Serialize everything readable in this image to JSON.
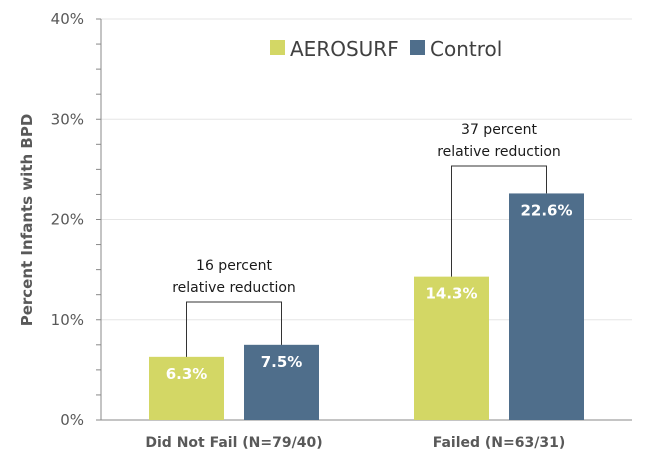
{
  "chart_data": {
    "type": "bar",
    "ylabel": "Percent Infants with BPD",
    "ylim": [
      0,
      40
    ],
    "yticks": [
      "0%",
      "10%",
      "20%",
      "30%",
      "40%"
    ],
    "grid": true,
    "legend_position": "top",
    "categories": [
      "Did Not Fail (N=79/40)",
      "Failed (N=63/31)"
    ],
    "series": [
      {
        "name": "AEROSURF",
        "color": "#d3d765",
        "values": [
          6.3,
          14.3
        ],
        "labels": [
          "6.3%",
          "14.3%"
        ]
      },
      {
        "name": "Control",
        "color": "#4f6e8b",
        "values": [
          7.5,
          22.6
        ],
        "labels": [
          "7.5%",
          "22.6%"
        ]
      }
    ],
    "annotations": [
      {
        "category": "Did Not Fail (N=79/40)",
        "line1": "16 percent",
        "line2": "relative reduction"
      },
      {
        "category": "Failed (N=63/31)",
        "line1": "37 percent",
        "line2": "relative reduction"
      }
    ]
  }
}
